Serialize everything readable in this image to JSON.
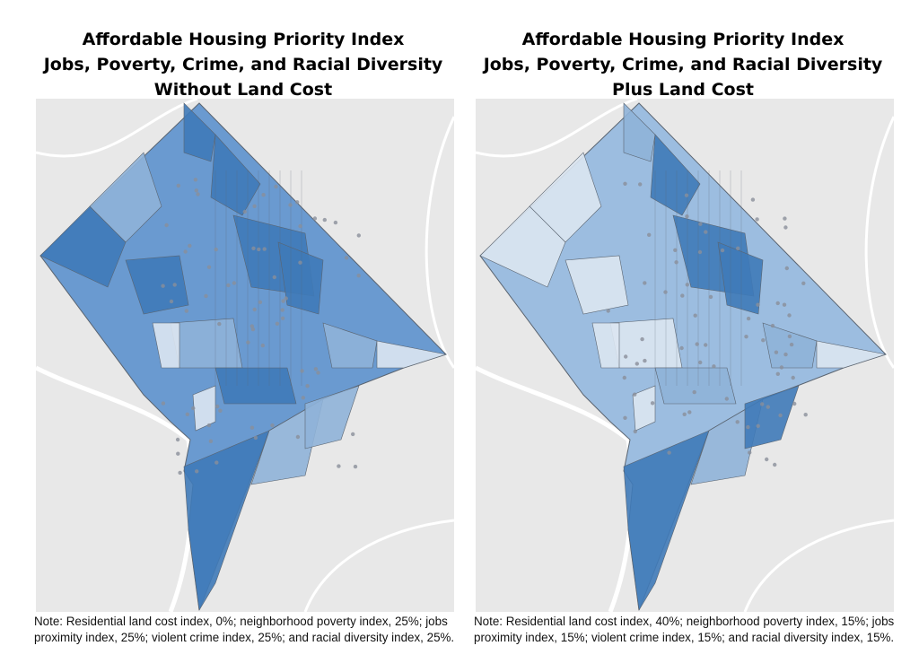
{
  "colors": {
    "background_map": "#e8e8e8",
    "roads": "#ffffff",
    "border": "#5a6470",
    "light": "#dbe6f1",
    "mid": "#8fb3d8",
    "dark": "#3f7ab8",
    "points": "#8a8f9a"
  },
  "maps": [
    {
      "title_lines": [
        "Affordable Housing Priority Index",
        "Jobs, Poverty, Crime, and Racial Diversity",
        "Without Land Cost"
      ],
      "note": "Note: Residential land cost index, 0%; neighborhood poverty index, 25%; jobs proximity index, 25%; violent crime index, 25%; and racial diversity index, 25%.",
      "base_fill": "#6a9ad0"
    },
    {
      "title_lines": [
        "Affordable Housing Priority Index",
        "Jobs, Poverty, Crime, and Racial Diversity",
        "Plus Land Cost"
      ],
      "note": "Note: Residential land cost index, 40%; neighborhood poverty index, 15%; jobs proximity index, 15%; violent crime index, 15%; and racial diversity index, 15%.",
      "base_fill": "#9cbde0"
    }
  ]
}
